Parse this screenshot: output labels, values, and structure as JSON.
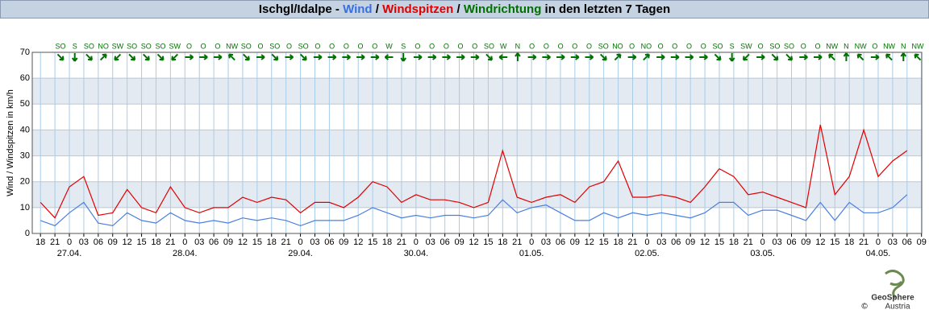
{
  "chart_data": {
    "type": "line",
    "title_parts": [
      {
        "text": "Ischgl/Idalpe - ",
        "color": "#000000"
      },
      {
        "text": "Wind",
        "color": "#3a6fe0"
      },
      {
        "text": " / ",
        "color": "#000000"
      },
      {
        "text": "Windspitzen",
        "color": "#e00000"
      },
      {
        "text": " / ",
        "color": "#000000"
      },
      {
        "text": "Windrichtung",
        "color": "#007000"
      },
      {
        "text": " in den letzten 7 Tagen",
        "color": "#000000"
      }
    ],
    "y_label": "Wind / Windspitzen in km/h",
    "categories": [
      "18",
      "21",
      "0",
      "03",
      "06",
      "09",
      "12",
      "15",
      "18",
      "21",
      "0",
      "03",
      "06",
      "09",
      "12",
      "15",
      "18",
      "21",
      "0",
      "03",
      "06",
      "09",
      "12",
      "15",
      "18",
      "21",
      "0",
      "03",
      "06",
      "09",
      "12",
      "15",
      "18",
      "21",
      "0",
      "03",
      "06",
      "09",
      "12",
      "15",
      "18",
      "21",
      "0",
      "03",
      "06",
      "09",
      "12",
      "15",
      "18",
      "21",
      "0",
      "03",
      "06",
      "09",
      "12",
      "15",
      "18",
      "21",
      "0",
      "03",
      "06",
      "09"
    ],
    "dates": [
      "27.04.",
      "28.04.",
      "29.04.",
      "30.04.",
      "01.05.",
      "02.05.",
      "03.05.",
      "04.05."
    ],
    "series": [
      {
        "name": "Windspitzen",
        "color": "#e00000",
        "values": [
          12,
          6,
          18,
          22,
          7,
          8,
          17,
          10,
          8,
          18,
          10,
          8,
          10,
          10,
          14,
          12,
          14,
          13,
          8,
          12,
          12,
          10,
          14,
          20,
          18,
          12,
          15,
          13,
          13,
          12,
          10,
          12,
          32,
          14,
          12,
          14,
          15,
          12,
          18,
          20,
          28,
          14,
          14,
          15,
          14,
          12,
          18,
          25,
          22,
          15,
          16,
          14,
          12,
          10,
          42,
          15,
          22,
          40,
          22,
          28,
          32,
          null
        ]
      },
      {
        "name": "Wind",
        "color": "#4a7fe0",
        "values": [
          5,
          3,
          8,
          12,
          4,
          3,
          8,
          5,
          4,
          8,
          5,
          4,
          5,
          4,
          6,
          5,
          6,
          5,
          3,
          5,
          5,
          5,
          7,
          10,
          8,
          6,
          7,
          6,
          7,
          7,
          6,
          7,
          13,
          8,
          10,
          11,
          8,
          5,
          5,
          8,
          6,
          8,
          7,
          8,
          7,
          6,
          8,
          12,
          12,
          7,
          9,
          9,
          7,
          5,
          12,
          5,
          12,
          8,
          8,
          10,
          15,
          null
        ]
      }
    ],
    "directions": [
      "SO",
      "S",
      "SO",
      "NO",
      "SW",
      "SO",
      "SO",
      "SO",
      "SW",
      "O",
      "O",
      "O",
      "NW",
      "SO",
      "O",
      "SO",
      "O",
      "SO",
      "O",
      "O",
      "O",
      "O",
      "O",
      "W",
      "S",
      "O",
      "O",
      "O",
      "O",
      "O",
      "SO",
      "W",
      "N",
      "O",
      "O",
      "O",
      "O",
      "O",
      "SO",
      "NO",
      "O",
      "NO",
      "O",
      "O",
      "O",
      "O",
      "SO",
      "S",
      "SW",
      "O",
      "SO",
      "SO",
      "O",
      "O",
      "NW",
      "N",
      "NW",
      "O",
      "NW",
      "N",
      "NW"
    ],
    "direction_color": "#007000",
    "ylim": [
      0,
      70
    ],
    "yticks": [
      0,
      10,
      20,
      30,
      40,
      50,
      60,
      70
    ],
    "grid": true,
    "logo": {
      "name": "GeoSphere",
      "sub": "Austria",
      "copyright": "©"
    }
  }
}
